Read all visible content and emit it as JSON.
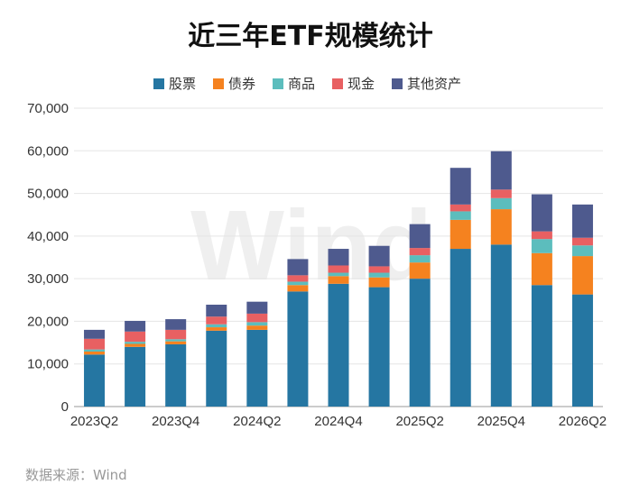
{
  "chart_data": {
    "type": "bar",
    "stacked": true,
    "title": "近三年ETF规模统计",
    "source": "数据来源：Wind",
    "watermark": "Wind",
    "categories": [
      "2023Q2",
      "2023Q3",
      "2023Q4",
      "2024Q1",
      "2024Q2",
      "2024Q3",
      "2024Q4",
      "2025Q1",
      "2025Q2",
      "2025Q3",
      "2025Q4",
      "2026Q1",
      "2026Q2"
    ],
    "x_tick_labels": [
      "2023Q2",
      "2023Q4",
      "2024Q2",
      "2024Q4",
      "2025Q2",
      "2025Q4",
      "2026Q2"
    ],
    "series": [
      {
        "name": "股票",
        "color": "#2576a2",
        "values": [
          12200,
          14000,
          14600,
          17800,
          18000,
          27000,
          28800,
          28000,
          30000,
          37000,
          38000,
          28500,
          26300
        ]
      },
      {
        "name": "债券",
        "color": "#f5821f",
        "values": [
          700,
          700,
          700,
          800,
          1000,
          1500,
          1800,
          2300,
          3800,
          6800,
          8300,
          7500,
          9000
        ]
      },
      {
        "name": "商品",
        "color": "#5cbdbd",
        "values": [
          500,
          500,
          500,
          700,
          800,
          800,
          800,
          1100,
          1700,
          2000,
          2600,
          3300,
          2500
        ]
      },
      {
        "name": "现金",
        "color": "#e86062",
        "values": [
          2500,
          2400,
          2200,
          1800,
          2000,
          1500,
          1700,
          1500,
          1700,
          1600,
          2000,
          1800,
          1800
        ]
      },
      {
        "name": "其他资产",
        "color": "#4e5a8e",
        "values": [
          2100,
          2500,
          2500,
          2800,
          2800,
          3800,
          3900,
          4800,
          5600,
          8600,
          9000,
          8700,
          7800
        ]
      }
    ],
    "ylim": [
      0,
      70000
    ],
    "yticks": [
      0,
      10000,
      20000,
      30000,
      40000,
      50000,
      60000,
      70000
    ],
    "ytick_labels": [
      "0",
      "10,000",
      "20,000",
      "30,000",
      "40,000",
      "50,000",
      "60,000",
      "70,000"
    ],
    "grid": true,
    "legend_position": "top-center"
  }
}
